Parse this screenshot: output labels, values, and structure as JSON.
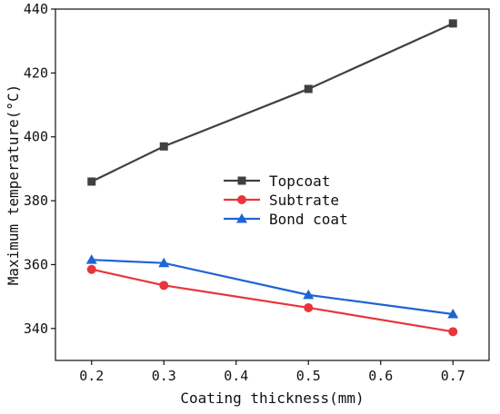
{
  "chart_data": {
    "type": "line",
    "title": "",
    "xlabel": "Coating thickness(mm)",
    "ylabel": "Maximum temperature(°C)",
    "xlim": [
      0.15,
      0.75
    ],
    "ylim": [
      330,
      440
    ],
    "x_ticks": [
      "0.2",
      "0.3",
      "0.4",
      "0.5",
      "0.6",
      "0.7"
    ],
    "y_ticks": [
      "340",
      "360",
      "380",
      "400",
      "420",
      "440"
    ],
    "grid": false,
    "legend_position": "center",
    "x": [
      0.2,
      0.3,
      0.5,
      0.7
    ],
    "series": [
      {
        "name": "Topcoat",
        "values": [
          386,
          397,
          415,
          435.5
        ],
        "color": "#404040",
        "marker": "square"
      },
      {
        "name": "Subtrate",
        "values": [
          358.5,
          353.5,
          346.5,
          339
        ],
        "color": "#e8353b",
        "marker": "circle"
      },
      {
        "name": "Bond coat",
        "values": [
          361.5,
          360.5,
          350.5,
          344.5
        ],
        "color": "#1f64d4",
        "marker": "triangle"
      }
    ]
  }
}
